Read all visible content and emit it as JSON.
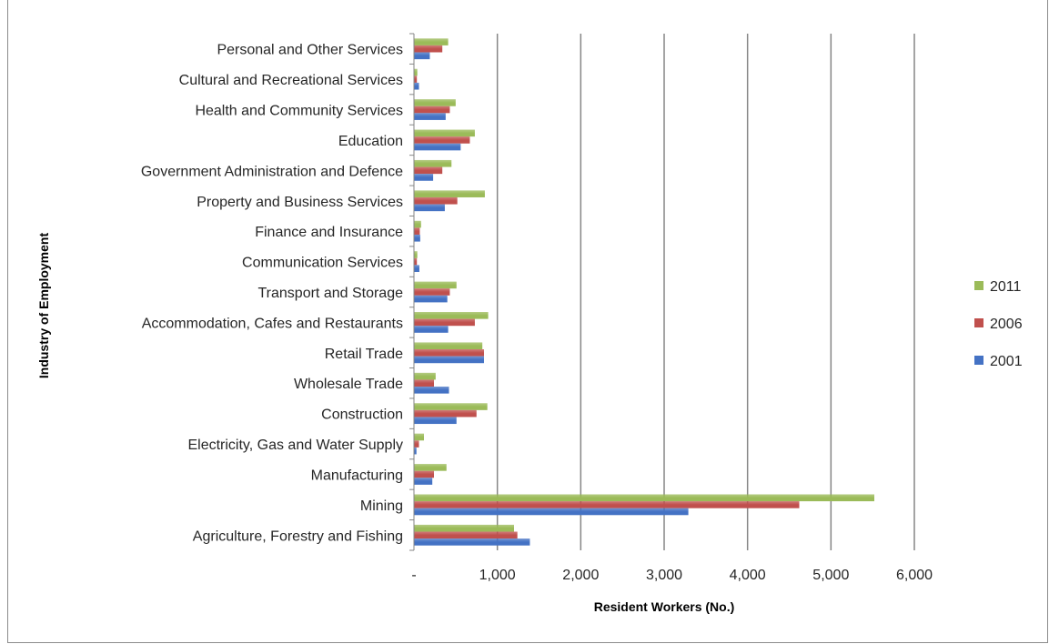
{
  "chart_data": {
    "type": "bar",
    "orientation": "horizontal",
    "title": "",
    "xlabel": "Resident Workers (No.)",
    "ylabel": "Industry of Employment",
    "xlim": [
      0,
      6000
    ],
    "xticks": [
      0,
      1000,
      2000,
      3000,
      4000,
      5000,
      6000
    ],
    "xtick_labels": [
      "-",
      "1,000",
      "2,000",
      "3,000",
      "4,000",
      "5,000",
      "6,000"
    ],
    "grid": "vertical major gridlines",
    "legend_position": "right",
    "categories": [
      "Agriculture, Forestry and Fishing",
      "Mining",
      "Manufacturing",
      "Electricity, Gas and Water Supply",
      "Construction",
      "Wholesale Trade",
      "Retail Trade",
      "Accommodation, Cafes and Restaurants",
      "Transport and Storage",
      "Communication Services",
      "Finance and Insurance",
      "Property and Business Services",
      "Government Administration and Defence",
      "Education",
      "Health and Community Services",
      "Cultural and Recreational Services",
      "Personal and Other Services"
    ],
    "series": [
      {
        "name": "2001",
        "color": "#4472c4",
        "values": [
          1390,
          3290,
          220,
          30,
          510,
          420,
          840,
          410,
          400,
          65,
          75,
          370,
          230,
          560,
          380,
          60,
          190
        ]
      },
      {
        "name": "2006",
        "color": "#c0504d",
        "values": [
          1240,
          4620,
          240,
          60,
          750,
          240,
          840,
          730,
          430,
          35,
          70,
          520,
          340,
          670,
          430,
          35,
          340
        ]
      },
      {
        "name": "2011",
        "color": "#9bbb59",
        "values": [
          1200,
          5520,
          390,
          120,
          880,
          260,
          820,
          890,
          510,
          40,
          85,
          850,
          450,
          730,
          500,
          40,
          410
        ]
      }
    ],
    "legend_order": [
      "2011",
      "2006",
      "2001"
    ]
  }
}
